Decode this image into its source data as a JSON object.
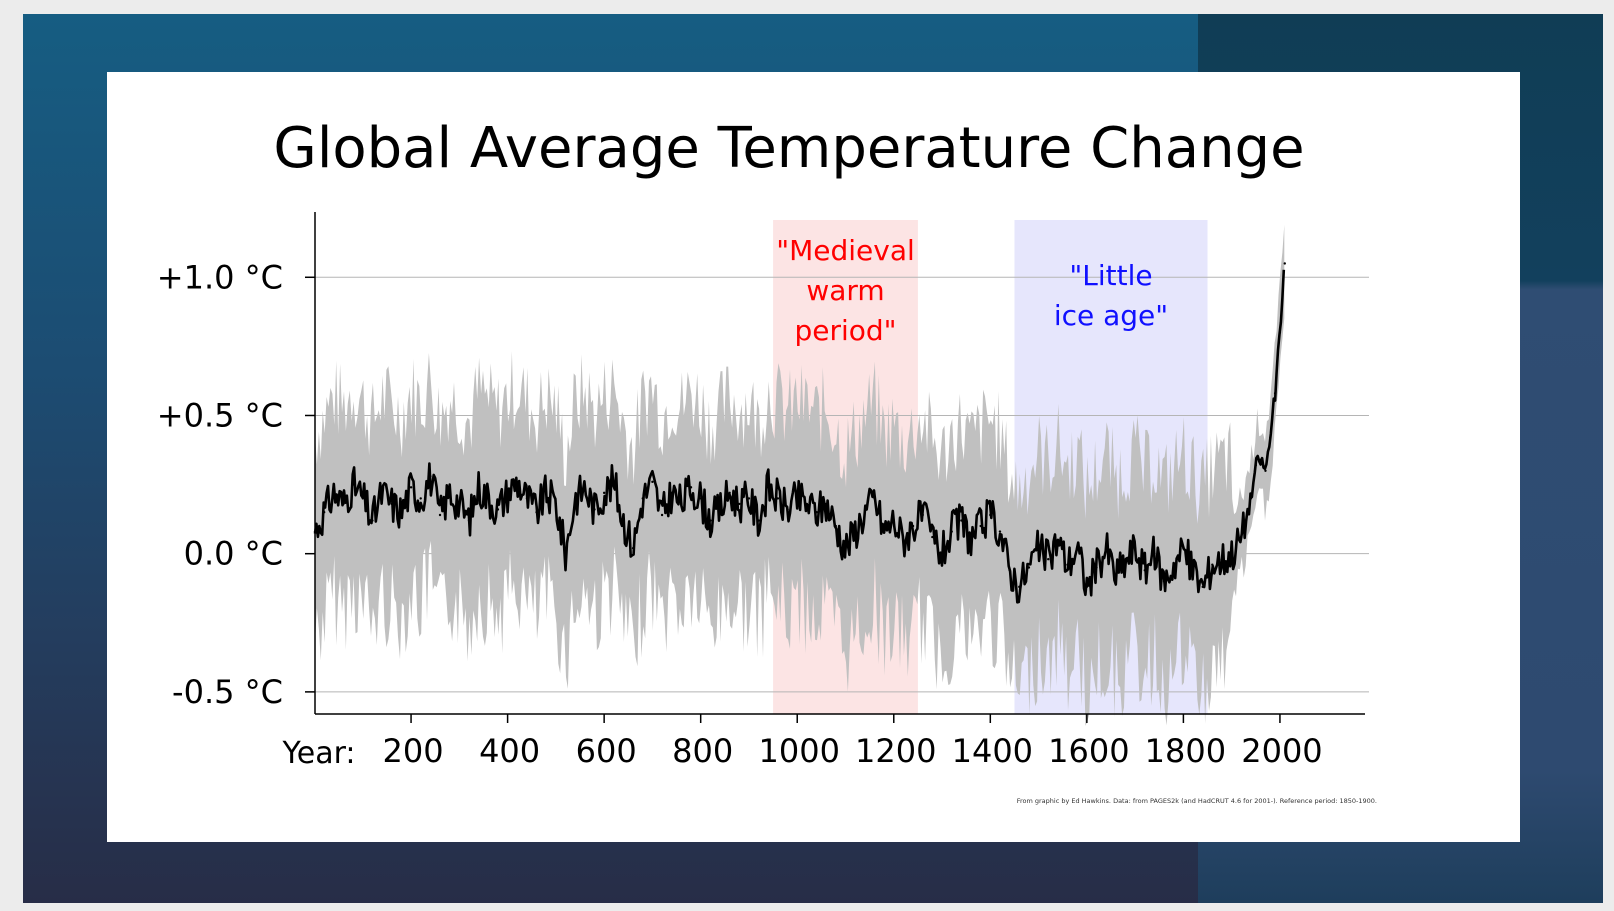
{
  "chart_data": {
    "type": "line",
    "title": "Global Average Temperature Change",
    "xlabel": "Year:",
    "xlim": [
      1,
      2170
    ],
    "ylim": [
      -0.58,
      1.2
    ],
    "x_ticks": [
      200,
      400,
      600,
      800,
      1000,
      1200,
      1400,
      1600,
      1800,
      2000
    ],
    "y_ticks": [
      {
        "value": 1.0,
        "label": "+1.0 °C"
      },
      {
        "value": 0.5,
        "label": "+0.5 °C"
      },
      {
        "value": 0.0,
        "label": "0.0 °C"
      },
      {
        "value": -0.5,
        "label": "-0.5 °C"
      }
    ],
    "grid": true,
    "regions": [
      {
        "label": "\"Medieval warm period\"",
        "lines": [
          "\"Medieval",
          "warm",
          "period\""
        ],
        "x": [
          950,
          1250
        ],
        "color": "#ff0000",
        "fill": "#fce4e4"
      },
      {
        "label": "\"Little ice age\"",
        "lines": [
          "\"Little",
          "ice age\""
        ],
        "x": [
          1450,
          1850
        ],
        "color": "#1010ff",
        "fill": "#e6e6fc"
      }
    ],
    "series": [
      {
        "color": "#000000",
        "x": [
          1,
          20,
          40,
          60,
          80,
          100,
          120,
          140,
          160,
          180,
          200,
          220,
          240,
          260,
          280,
          300,
          320,
          340,
          360,
          380,
          400,
          420,
          440,
          460,
          480,
          500,
          520,
          540,
          560,
          580,
          600,
          620,
          640,
          660,
          680,
          700,
          720,
          740,
          760,
          780,
          800,
          820,
          840,
          860,
          880,
          900,
          920,
          940,
          960,
          980,
          1000,
          1020,
          1040,
          1060,
          1080,
          1100,
          1120,
          1140,
          1160,
          1180,
          1200,
          1220,
          1240,
          1260,
          1280,
          1300,
          1320,
          1340,
          1360,
          1380,
          1400,
          1420,
          1440,
          1460,
          1480,
          1500,
          1520,
          1540,
          1560,
          1580,
          1600,
          1620,
          1640,
          1660,
          1680,
          1700,
          1720,
          1740,
          1760,
          1780,
          1800,
          1820,
          1840,
          1860,
          1880,
          1900,
          1920,
          1940,
          1950,
          1960,
          1970,
          1980,
          1990,
          2000,
          2010
        ],
        "values": [
          0.08,
          0.15,
          0.22,
          0.18,
          0.25,
          0.2,
          0.12,
          0.22,
          0.18,
          0.15,
          0.24,
          0.2,
          0.28,
          0.14,
          0.22,
          0.18,
          0.12,
          0.24,
          0.2,
          0.16,
          0.22,
          0.26,
          0.2,
          0.15,
          0.22,
          0.18,
          0.0,
          0.2,
          0.24,
          0.16,
          0.22,
          0.26,
          0.12,
          0.02,
          0.2,
          0.26,
          0.14,
          0.22,
          0.18,
          0.24,
          0.2,
          0.12,
          0.16,
          0.22,
          0.18,
          0.2,
          0.12,
          0.24,
          0.2,
          0.16,
          0.2,
          0.18,
          0.15,
          0.18,
          0.1,
          0.02,
          0.08,
          0.15,
          0.2,
          0.08,
          0.12,
          0.05,
          0.1,
          0.14,
          0.06,
          0.0,
          0.08,
          0.12,
          0.05,
          0.1,
          0.14,
          0.08,
          -0.06,
          -0.12,
          -0.05,
          0.02,
          -0.02,
          0.05,
          -0.04,
          0.02,
          -0.12,
          -0.05,
          0.02,
          -0.08,
          -0.03,
          0.02,
          -0.06,
          0.0,
          -0.1,
          -0.04,
          0.02,
          -0.06,
          -0.12,
          -0.04,
          -0.02,
          0.0,
          0.06,
          0.2,
          0.32,
          0.34,
          0.3,
          0.42,
          0.58,
          0.8,
          1.05
        ]
      }
    ],
    "uncertainty": {
      "color": "#c0c0c0",
      "upper_offset": 0.35,
      "lower_offset": 0.38,
      "recent_upper_offset": 0.14,
      "recent_lower_offset": 0.14
    },
    "source_note": "From graphic by Ed Hawkins.   Data: from PAGES2k (and HadCRUT 4.6 for 2001-).   Reference period: 1850-1900."
  }
}
